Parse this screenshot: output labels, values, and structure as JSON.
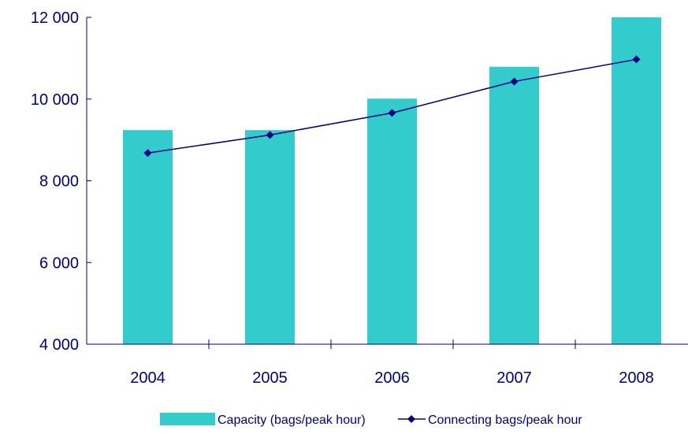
{
  "chart_data": {
    "type": "bar",
    "categories": [
      "2004",
      "2005",
      "2006",
      "2007",
      "2008"
    ],
    "series": [
      {
        "name": "Capacity (bags/peak hour)",
        "type": "bar",
        "values": [
          9240,
          9240,
          10010,
          10790,
          12000
        ]
      },
      {
        "name": "Connecting bags/peak hour",
        "type": "line",
        "values": [
          8680,
          9120,
          9660,
          10430,
          10970
        ]
      }
    ],
    "y_ticks": [
      "4 000",
      "6 000",
      "8 000",
      "10 000",
      "12 000"
    ],
    "ylim": [
      4000,
      12000
    ],
    "grid": false,
    "legend_position": "bottom",
    "colors": {
      "bar": "#33CCCC",
      "line": "#000080",
      "axis": "#000080",
      "text": "#000080"
    }
  }
}
